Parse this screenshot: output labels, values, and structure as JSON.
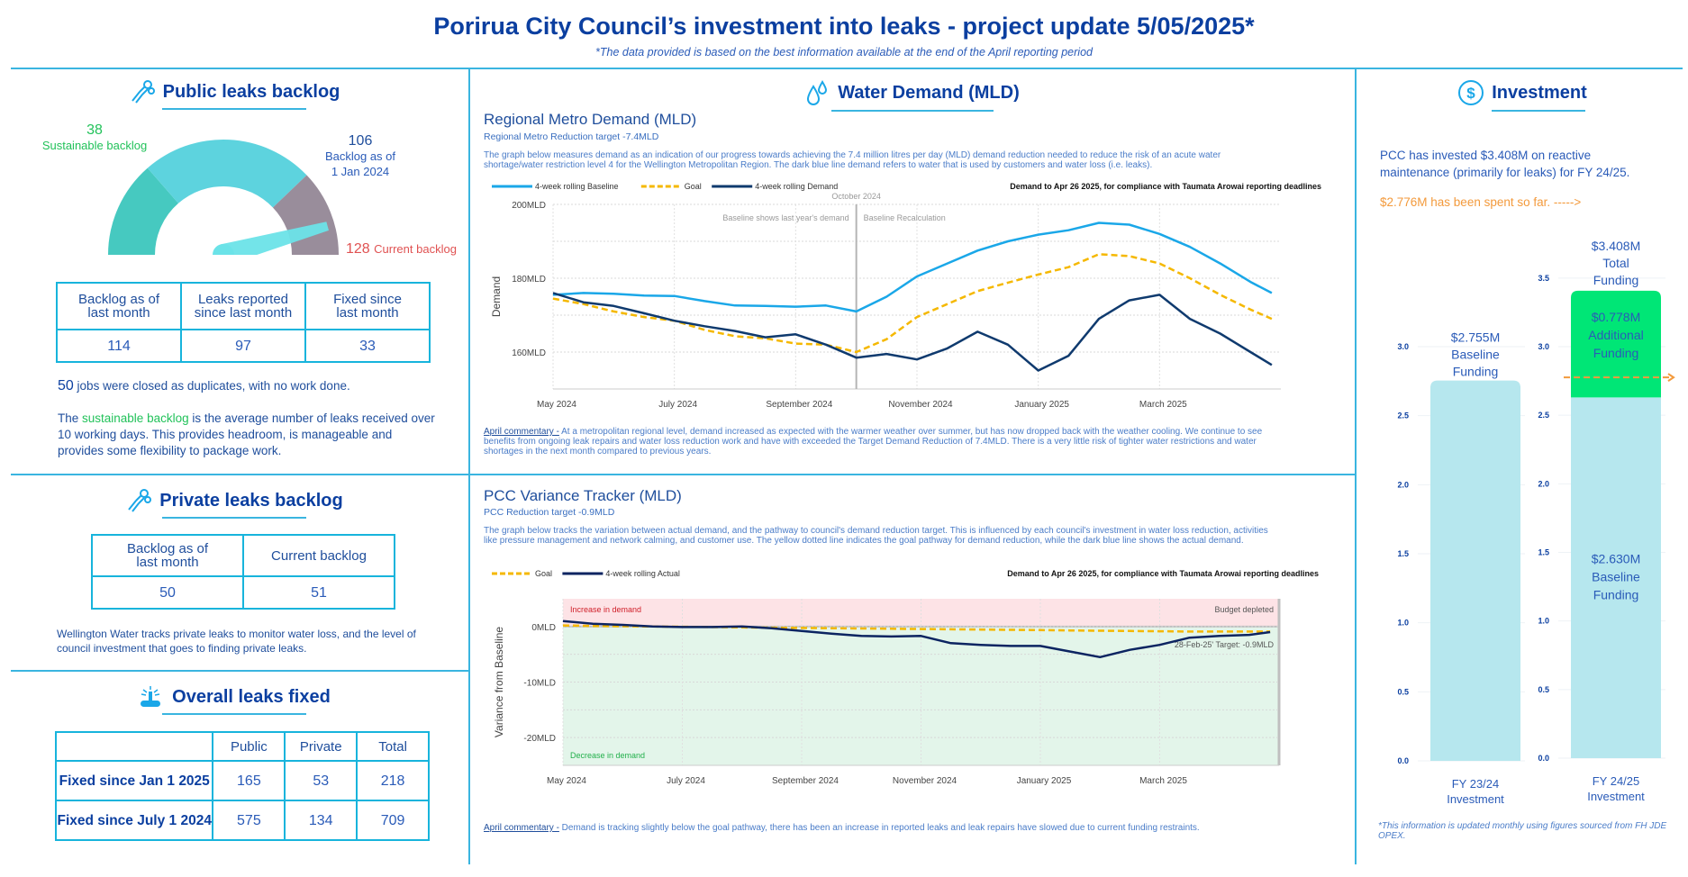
{
  "header": {
    "title": "Porirua City Council’s investment into leaks - project update 5/05/2025*",
    "subtitle": "*The data provided is based on the best information available at the end of the April reporting period"
  },
  "public_backlog": {
    "title": "Public leaks backlog",
    "icon": "wrench-hand-icon",
    "gauge": {
      "sustainable_value": "38",
      "sustainable_label": "Sustainable backlog",
      "jan_value": "106",
      "jan_label_1": "Backlog as of",
      "jan_label_2": "1 Jan 2024",
      "current_value": "128",
      "current_label": "Current backlog",
      "scale_max": 140,
      "colors": {
        "sustainable": "#46c9c0",
        "to_jan": "#5dd3de",
        "above_jan": "#998d9b",
        "needle": "#6be3e8"
      }
    },
    "table": {
      "headers": [
        "Backlog as of last month",
        "Leaks reported since last month",
        "Fixed since last month"
      ],
      "headers_l1": [
        "Backlog as of",
        "Leaks reported",
        "Fixed since"
      ],
      "headers_l2": [
        "last month",
        "since last month",
        "last month"
      ],
      "values": [
        "114",
        "97",
        "33"
      ]
    },
    "duplicates_num": "50",
    "duplicates_text": " jobs were closed as duplicates, with no work done.",
    "note_pre": "The ",
    "note_highlight": "sustainable backlog",
    "note_post": " is the average number of leaks received over 10 working days. This provides headroom, is manageable and provides some flexibility to package work."
  },
  "private_backlog": {
    "title": "Private leaks backlog",
    "icon": "wrench-hand-icon",
    "table": {
      "headers_l1": [
        "Backlog as of",
        "Current backlog"
      ],
      "headers_l2": [
        "last month",
        ""
      ],
      "values": [
        "50",
        "51"
      ]
    },
    "note": "Wellington Water tracks private leaks to monitor water loss, and the level of council investment that goes to finding private leaks."
  },
  "overall_fixed": {
    "title": "Overall leaks fixed",
    "icon": "burst-pipe-icon",
    "columns": [
      "",
      "Public",
      "Private",
      "Total"
    ],
    "rows": [
      {
        "label": "Fixed since Jan 1 2025",
        "public": "165",
        "private": "53",
        "total": "218"
      },
      {
        "label": "Fixed since July 1 2024",
        "public": "575",
        "private": "134",
        "total": "709"
      }
    ]
  },
  "water_demand": {
    "title": "Water Demand (MLD)",
    "icon": "water-drops-icon",
    "regional": {
      "title": "Regional Metro Demand (MLD)",
      "subtitle": "Regional Metro Reduction target -7.4MLD",
      "desc_1": "The graph below measures demand as an indication of our progress towards achieving the 7.4 million litres per day (MLD) demand reduction needed to reduce the risk of an acute water",
      "desc_2": "shortage/water restriction level 4 for the Wellington Metropolitan Region. The dark blue line demand refers to water that is used by customers and water loss (i.e. leaks).",
      "note": "Demand to Apr 26 2025, for compliance with Taumata Arowai reporting deadlines",
      "commentary_label": "April commentary -",
      "commentary_1": " At a metropolitan regional level, demand increased as expected with the warmer weather over summer, but has now dropped back with the weather cooling. We continue to see",
      "commentary_2": "benefits from ongoing leak repairs and water loss reduction work and have with exceeded the Target Demand Reduction of 7.4MLD. There is a very little risk of tighter water restrictions and water",
      "commentary_3": "shortages in the next month compared to previous years."
    },
    "variance": {
      "title": "PCC Variance Tracker (MLD)",
      "subtitle": "PCC Reduction target -0.9MLD",
      "desc_1": "The graph below tracks the variation between actual demand, and the pathway to council's demand reduction target. This is influenced by each council's investment in water loss reduction, activities",
      "desc_2": "like pressure management and network calming, and customer use. The yellow dotted line indicates the goal pathway for demand reduction, while the dark blue line shows the actual demand.",
      "note": "Demand to Apr 26 2025, for compliance with Taumata Arowai reporting deadlines",
      "commentary_label": "April commentary -",
      "commentary_1": " Demand is tracking slightly below the goal pathway, there has been an increase in reported leaks and leak repairs have slowed due to current funding restraints."
    }
  },
  "investment": {
    "title": "Investment",
    "icon": "dollar-circle-icon",
    "text_1": "PCC has invested $3.408M on reactive maintenance (primarily for leaks) for FY 24/25.",
    "spent_text": "$2.776M has been spent so far. ----->",
    "footer": "*This information is updated monthly using figures sourced from FH JDE OPEX."
  },
  "chart_data": [
    {
      "id": "regional",
      "type": "line",
      "title": "Regional Metro Demand (MLD)",
      "xlabel": "",
      "ylabel": "Demand",
      "ylim": [
        150,
        200
      ],
      "yticks": [
        160,
        180,
        200
      ],
      "ytick_labels": [
        "160MLD",
        "180MLD",
        "200MLD"
      ],
      "xlim": [
        0,
        12
      ],
      "xticks": [
        0,
        2,
        4,
        6,
        8,
        10
      ],
      "xtick_labels": [
        "May 2024",
        "July 2024",
        "September 2024",
        "November 2024",
        "January 2025",
        "March 2025"
      ],
      "grid": true,
      "legend_position": "top-left",
      "annotations": {
        "vline_x": 5.0,
        "vline_label": "October 2024",
        "left_label": "Baseline shows last year's demand",
        "right_label": "Baseline Recalculation"
      },
      "x": [
        0,
        0.5,
        1,
        1.5,
        2,
        2.5,
        3,
        3.5,
        4,
        4.5,
        5,
        5.5,
        6,
        6.5,
        7,
        7.5,
        8,
        8.5,
        9,
        9.5,
        10,
        10.5,
        11,
        11.5,
        11.85
      ],
      "series": [
        {
          "name": "4-week rolling Baseline",
          "color": "#1aa7e8",
          "dash": false,
          "values": [
            175.5,
            176,
            175.8,
            175.3,
            175.2,
            173.8,
            172.6,
            172.5,
            172.3,
            172.6,
            171.0,
            175,
            180.5,
            184,
            187.5,
            190,
            191.8,
            193,
            195,
            194.5,
            192,
            188.5,
            184,
            179,
            176
          ]
        },
        {
          "name": "Goal",
          "color": "#f5b800",
          "dash": true,
          "values": [
            174.5,
            173,
            171,
            169.5,
            168.5,
            166,
            164.3,
            163.7,
            162.3,
            162,
            160.0,
            163.5,
            169.5,
            173,
            176.5,
            178.8,
            181,
            183,
            186.5,
            186,
            184,
            180,
            175.5,
            171.5,
            169
          ]
        },
        {
          "name": "4-week rolling Demand",
          "color": "#0f3a6e",
          "dash": false,
          "values": [
            176,
            173.5,
            172.5,
            170.5,
            168.5,
            167,
            165.7,
            164,
            164.8,
            162,
            158.5,
            159.5,
            158,
            161,
            165.5,
            162,
            155,
            159,
            169,
            174,
            175.5,
            169,
            165,
            160,
            156.5
          ]
        }
      ]
    },
    {
      "id": "variance",
      "type": "line",
      "title": "PCC Variance Tracker (MLD)",
      "xlabel": "",
      "ylabel": "Variance from Baseline",
      "ylim": [
        -25,
        5
      ],
      "yticks": [
        -20,
        -10,
        0
      ],
      "ytick_labels": [
        "-20MLD",
        "-10MLD",
        "0MLD"
      ],
      "xlim": [
        0,
        12
      ],
      "xticks": [
        0,
        2,
        4,
        6,
        8,
        10
      ],
      "xtick_labels": [
        "May 2024",
        "July 2024",
        "September 2024",
        "November 2024",
        "January 2025",
        "March 2025"
      ],
      "grid": true,
      "legend_position": "top-left",
      "annotations": {
        "increase_label": "Increase in demand",
        "decrease_label": "Decrease in demand",
        "budget_label": "Budget depleted",
        "target_label": "28-Feb-25' Target: -0.9MLD"
      },
      "x": [
        0,
        0.5,
        1,
        1.5,
        2,
        2.5,
        3,
        3.5,
        4,
        4.5,
        5,
        5.5,
        6,
        6.5,
        7,
        7.5,
        8,
        8.5,
        9,
        9.5,
        10,
        10.5,
        11,
        11.5,
        11.85
      ],
      "series": [
        {
          "name": "Goal",
          "color": "#f5b800",
          "dash": true,
          "values": [
            0.2,
            0.1,
            0.05,
            0,
            -0.05,
            -0.1,
            -0.15,
            -0.2,
            -0.25,
            -0.3,
            -0.35,
            -0.4,
            -0.45,
            -0.5,
            -0.55,
            -0.6,
            -0.65,
            -0.7,
            -0.75,
            -0.8,
            -0.85,
            -0.9,
            -0.9,
            -0.9,
            -0.9
          ]
        },
        {
          "name": "4-week rolling Actual",
          "color": "#0c2461",
          "dash": false,
          "values": [
            1.0,
            0.5,
            0.3,
            0,
            -0.1,
            -0.1,
            0,
            -0.3,
            -0.8,
            -1.3,
            -1.7,
            -1.8,
            -1.7,
            -3.0,
            -3.3,
            -3.5,
            -3.5,
            -4.5,
            -5.5,
            -4.2,
            -3.3,
            -2.0,
            -1.7,
            -1.5,
            -1.0
          ]
        }
      ]
    },
    {
      "id": "investment",
      "type": "bar",
      "title": "Investment",
      "ylim": [
        0,
        3.5
      ],
      "yticks": [
        0.0,
        0.5,
        1.0,
        1.5,
        2.0,
        2.5,
        3.0,
        3.5
      ],
      "categories": [
        "FY 23/24 Investment",
        "FY 24/25 Investment"
      ],
      "category_l1": [
        "FY 23/24",
        "FY 24/25"
      ],
      "category_l2": [
        "Investment",
        "Investment"
      ],
      "series": [
        {
          "name": "Baseline Funding",
          "color": "#b6e7ee",
          "values": [
            2.755,
            2.63
          ]
        },
        {
          "name": "Additional Funding",
          "color": "#00e676",
          "values": [
            0,
            0.778
          ]
        }
      ],
      "labels": {
        "fy23_value": "$2.755M",
        "fy23_l1": "Baseline",
        "fy23_l2": "Funding",
        "total_value": "$3.408M",
        "total_l1": "Total",
        "total_l2": "Funding",
        "add_value": "$0.778M",
        "add_l1": "Additional",
        "add_l2": "Funding",
        "base_value": "$2.630M",
        "base_l1": "Baseline",
        "base_l2": "Funding"
      },
      "spent_marker": 2.776,
      "spent_color": "#f39a3c"
    }
  ]
}
